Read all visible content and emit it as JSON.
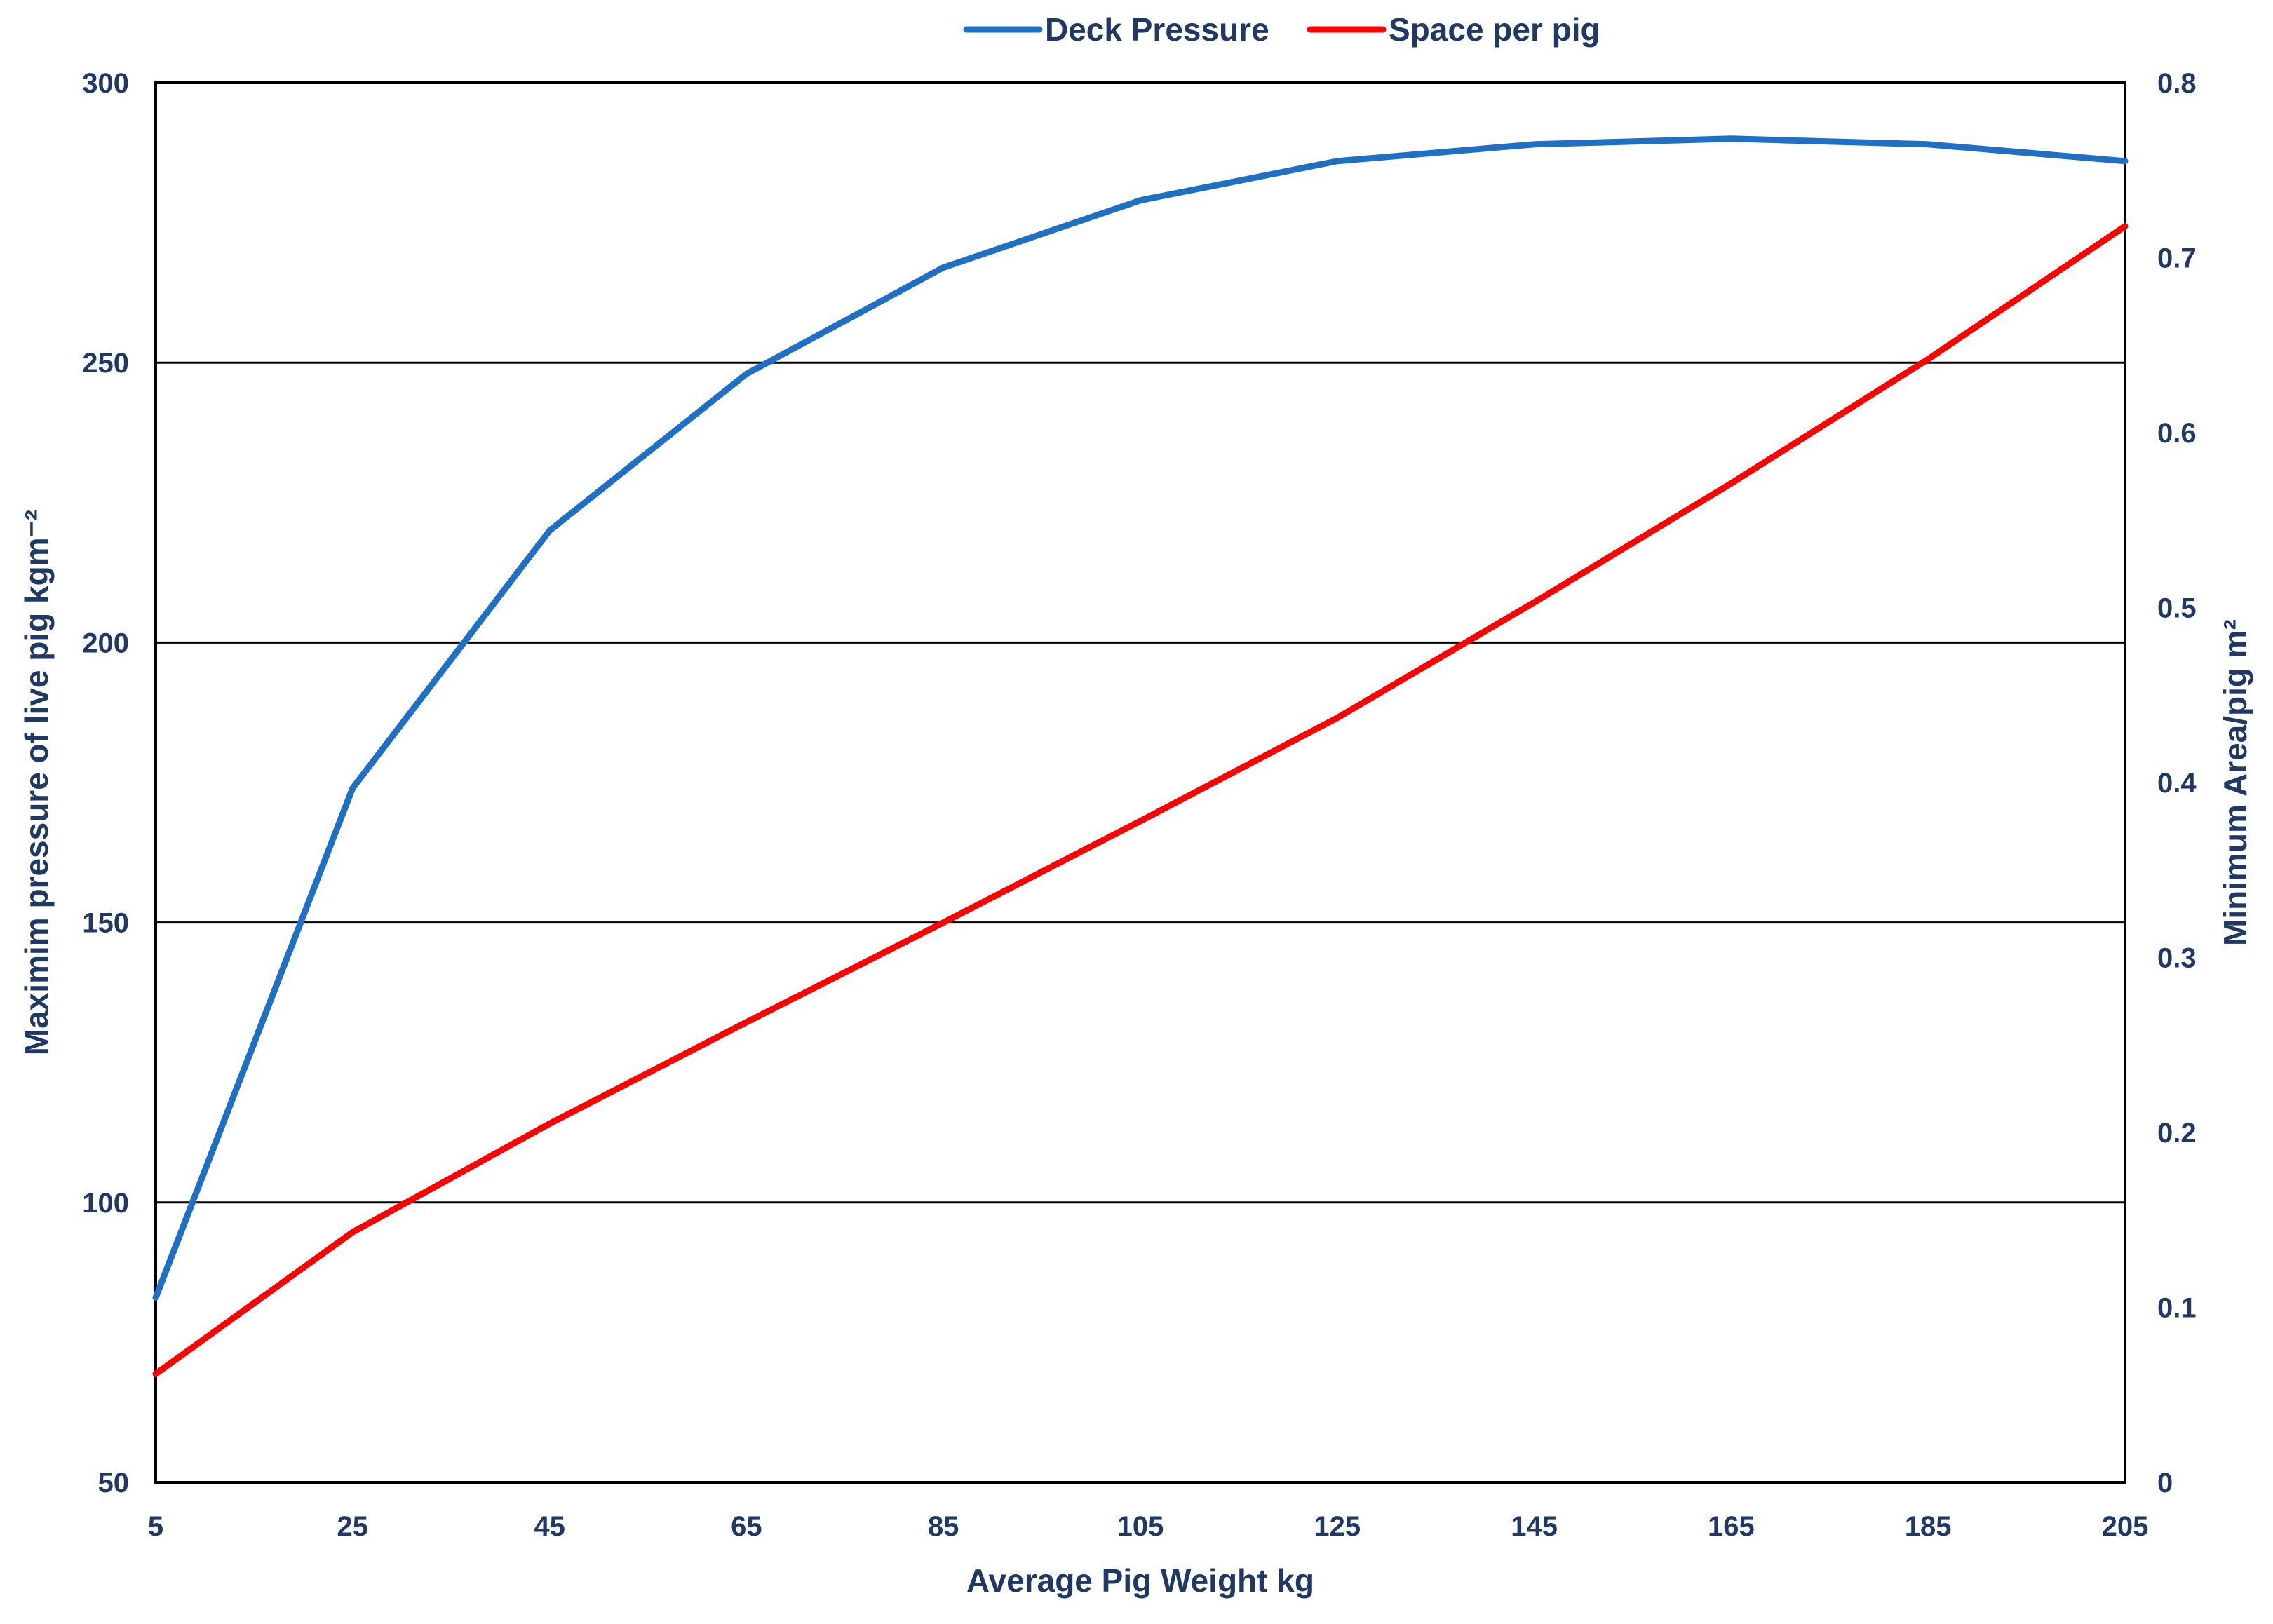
{
  "chart_data": {
    "type": "line",
    "title": "",
    "x": [
      5,
      25,
      45,
      65,
      85,
      105,
      125,
      145,
      165,
      185,
      205
    ],
    "x_ticks": [
      "5",
      "25",
      "45",
      "65",
      "85",
      "105",
      "125",
      "145",
      "165",
      "185",
      "205"
    ],
    "xlabel": "Average Pig  Weight kg",
    "ylabel_left": "Maximim  pressure of live  pig kgm⁻²",
    "ylabel_right": "Minimum Area/pig m²",
    "ylim_left": [
      50,
      300
    ],
    "ylim_right": [
      0,
      0.8
    ],
    "y_ticks_left": [
      "50",
      "100",
      "150",
      "200",
      "250",
      "300"
    ],
    "y_ticks_right": [
      "0",
      "0.1",
      "0.2",
      "0.3",
      "0.4",
      "0.5",
      "0.6",
      "0.7",
      "0.8"
    ],
    "grid": "horizontal at 100, 150, 200, 250 (left axis)",
    "legend_position": "top-center",
    "series": [
      {
        "name": "Deck Pressure",
        "axis": "left",
        "color": "#1F6FC5",
        "values": [
          83,
          174,
          220,
          248,
          267,
          279,
          286,
          289,
          290,
          289,
          286
        ]
      },
      {
        "name": "Space per pig",
        "axis": "right",
        "color": "#FF0000",
        "values": [
          0.062,
          0.143,
          0.205,
          0.263,
          0.32,
          0.378,
          0.437,
          0.503,
          0.571,
          0.642,
          0.718
        ]
      }
    ]
  }
}
